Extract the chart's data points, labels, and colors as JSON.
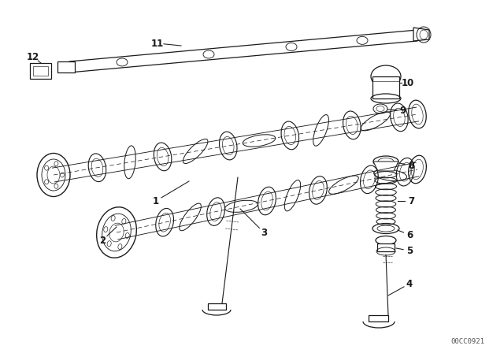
{
  "bg_color": "#ffffff",
  "line_color": "#1a1a1a",
  "fig_width": 6.4,
  "fig_height": 4.48,
  "dpi": 100,
  "watermark": "00CC0921",
  "label_fontsize": 8.5,
  "lw": 0.9
}
